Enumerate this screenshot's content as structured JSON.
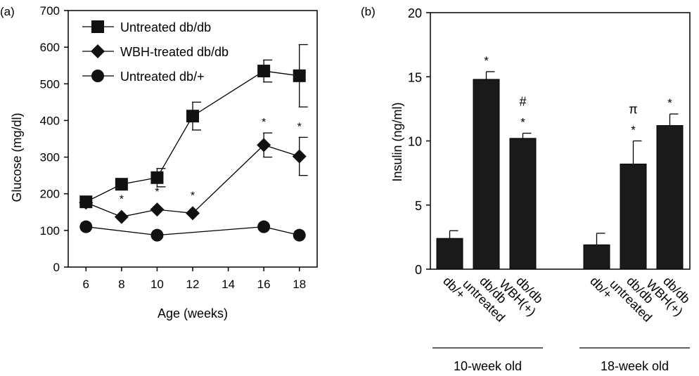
{
  "chart_data": [
    {
      "panel_label": "(a)",
      "type": "line",
      "xlabel": "Age (weeks)",
      "ylabel": "Glucose (mg/dl)",
      "xlim": [
        5,
        19
      ],
      "ylim": [
        0,
        700
      ],
      "xticks": [
        6,
        8,
        10,
        12,
        14,
        16,
        18
      ],
      "yticks": [
        0,
        100,
        200,
        300,
        400,
        500,
        600,
        700
      ],
      "legend_position": "top-left",
      "series": [
        {
          "name": "Untreated db/db",
          "marker": "square",
          "points": [
            {
              "x": 6,
              "y": 178,
              "err": 0
            },
            {
              "x": 8,
              "y": 226,
              "err": 0
            },
            {
              "x": 10,
              "y": 244,
              "err": 25
            },
            {
              "x": 12,
              "y": 412,
              "err": 38
            },
            {
              "x": 16,
              "y": 535,
              "err": 30
            },
            {
              "x": 18,
              "y": 522,
              "err": 85
            }
          ]
        },
        {
          "name": "WBH-treated db/db",
          "marker": "diamond",
          "points": [
            {
              "x": 6,
              "y": 176,
              "err": 0
            },
            {
              "x": 8,
              "y": 137,
              "err": 0,
              "mark": "*"
            },
            {
              "x": 10,
              "y": 157,
              "err": 0,
              "mark": "*"
            },
            {
              "x": 12,
              "y": 147,
              "err": 0,
              "mark": "*"
            },
            {
              "x": 16,
              "y": 333,
              "err": 33,
              "mark": "*"
            },
            {
              "x": 18,
              "y": 302,
              "err": 52,
              "mark": "*"
            }
          ]
        },
        {
          "name": "Untreated db/+",
          "marker": "circle",
          "points": [
            {
              "x": 6,
              "y": 110,
              "err": 0
            },
            {
              "x": 10,
              "y": 87,
              "err": 0
            },
            {
              "x": 16,
              "y": 110,
              "err": 0
            },
            {
              "x": 18,
              "y": 87,
              "err": 0
            }
          ]
        }
      ]
    },
    {
      "panel_label": "(b)",
      "type": "bar",
      "ylabel": "Insulin (ng/ml)",
      "ylim": [
        0,
        20
      ],
      "yticks": [
        0,
        5,
        10,
        15,
        20
      ],
      "groups": [
        {
          "label": "10-week old",
          "bars": [
            {
              "category": "db/+",
              "value": 2.4,
              "err": 0.6,
              "marks": []
            },
            {
              "category": "db/db untreated",
              "value": 14.8,
              "err": 0.6,
              "marks": [
                "*"
              ]
            },
            {
              "category": "db/db WBH(+)",
              "value": 10.2,
              "err": 0.4,
              "marks": [
                "*",
                "#"
              ]
            }
          ]
        },
        {
          "label": "18-week old",
          "bars": [
            {
              "category": "db/+",
              "value": 1.9,
              "err": 0.9,
              "marks": []
            },
            {
              "category": "db/db untreated",
              "value": 8.2,
              "err": 1.8,
              "marks": [
                "*",
                "π"
              ]
            },
            {
              "category": "db/db WBH(+)",
              "value": 11.2,
              "err": 0.9,
              "marks": [
                "*"
              ]
            }
          ]
        }
      ]
    }
  ]
}
